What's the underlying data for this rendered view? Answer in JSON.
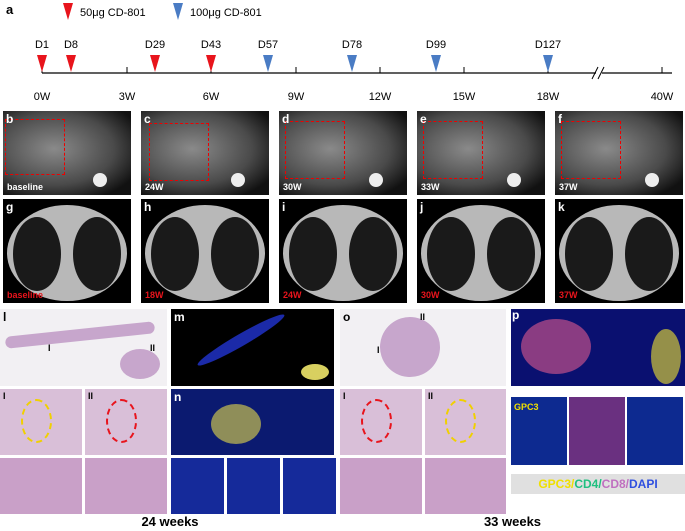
{
  "panel_a": {
    "letter": "a",
    "legend": [
      "50μg  CD-801",
      "100μg  CD-801"
    ],
    "doses": [
      "D1",
      "D8",
      "D29",
      "D43",
      "D57",
      "D78",
      "D99",
      "D127"
    ],
    "weeks": [
      "0W",
      "3W",
      "6W",
      "9W",
      "12W",
      "15W",
      "18W",
      "40W"
    ]
  },
  "mri": {
    "letters": [
      "b",
      "c",
      "d",
      "e",
      "f"
    ],
    "labels": [
      "baseline",
      "24W",
      "30W",
      "33W",
      "37W"
    ]
  },
  "ct": {
    "letters": [
      "g",
      "h",
      "i",
      "j",
      "k"
    ],
    "labels": [
      "baseline",
      "18W",
      "24W",
      "30W",
      "37W"
    ]
  },
  "histology": {
    "letters": [
      "l",
      "m",
      "n",
      "o",
      "p"
    ],
    "region_labels": [
      "I",
      "II"
    ],
    "marker_title": "GPC3",
    "marker_legend": [
      "GPC3/",
      "CD4/",
      "CD8/",
      "DAPI"
    ]
  },
  "footer": [
    "24 weeks",
    "33 weeks"
  ]
}
